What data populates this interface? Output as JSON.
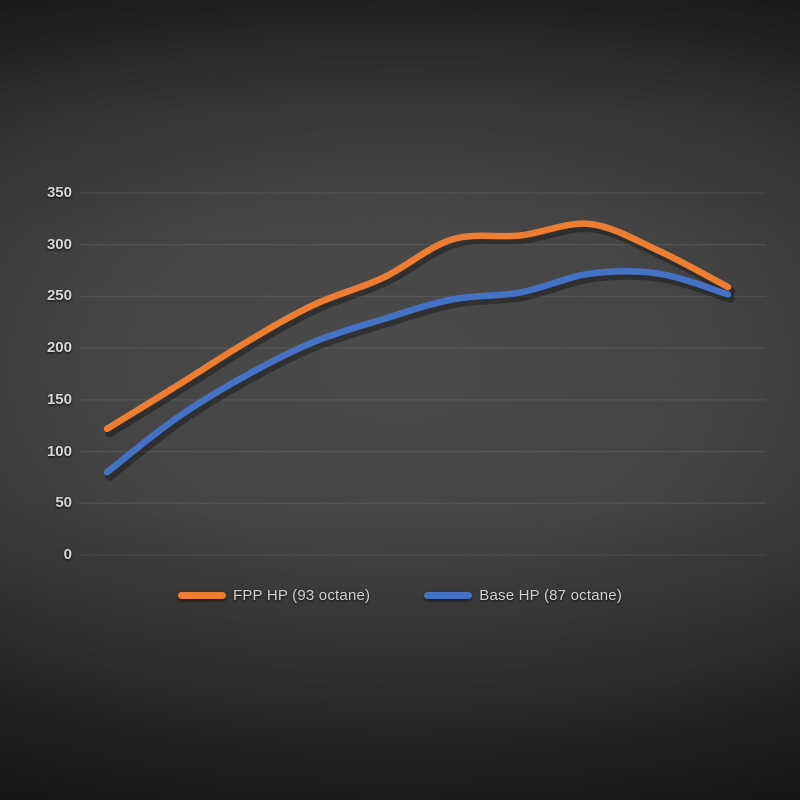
{
  "chart_data": {
    "type": "line",
    "title": "",
    "grid": "horizontal",
    "legend_position": "bottom",
    "x_axis": {
      "labels_visible": false,
      "num_points": 10
    },
    "y_axis": {
      "min": 0,
      "max": 350,
      "ticks": [
        350,
        300,
        250,
        200,
        150,
        100,
        50,
        0
      ]
    },
    "series": [
      {
        "name": "FPP HP (93 octane)",
        "color": "#ED7D31",
        "values": [
          122,
          163,
          205,
          242,
          268,
          305,
          309,
          320,
          294,
          259
        ]
      },
      {
        "name": "Base HP (87 octane)",
        "color": "#4472C4",
        "values": [
          80,
          132,
          173,
          206,
          228,
          247,
          254,
          272,
          272,
          252
        ]
      }
    ],
    "colors": {
      "background_center": "#4b4b4b",
      "background_edge": "#242424",
      "gridline": "rgba(255,255,255,0.08)",
      "tick_text": "#d6d6d6"
    }
  }
}
